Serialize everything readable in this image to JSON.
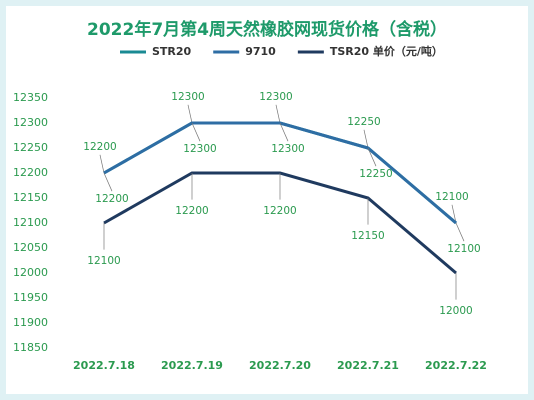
{
  "chart_data": {
    "type": "line",
    "title": "2022年7月第4周天然橡胶网现货价格（含税）",
    "categories": [
      "2022.7.18",
      "2022.7.19",
      "2022.7.20",
      "2022.7.21",
      "2022.7.22"
    ],
    "series": [
      {
        "name": "STR20",
        "color": "#1a8a93",
        "values": [
          12200,
          12300,
          12300,
          12250,
          12100
        ]
      },
      {
        "name": "9710",
        "color": "#2e6da4",
        "values": [
          12200,
          12300,
          12300,
          12250,
          12100
        ]
      },
      {
        "name": "TSR20 单价（元/吨）",
        "color": "#1f3a5f",
        "values": [
          12100,
          12200,
          12200,
          12150,
          12000
        ]
      }
    ],
    "ylim": [
      11850,
      12350
    ],
    "yticks": [
      11850,
      11900,
      11950,
      12000,
      12050,
      12100,
      12150,
      12200,
      12250,
      12300,
      12350
    ]
  }
}
